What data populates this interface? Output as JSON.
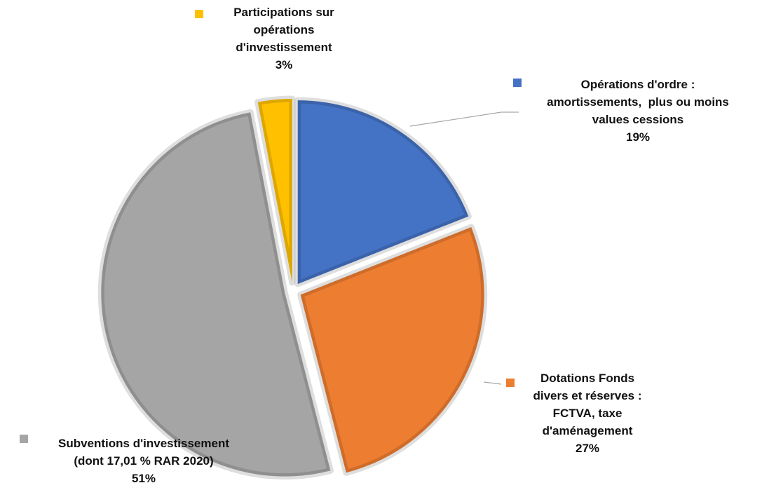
{
  "chart_data": {
    "type": "pie",
    "categories": [
      "Opérations d'ordre :\namortissements,  plus ou moins\nvalues cessions",
      "Dotations Fonds\ndivers et réserves :\nFCTVA, taxe\nd'aménagement",
      "Subventions d'investissement\n(dont 17,01 % RAR 2020)",
      "Participations sur\nopérations\nd'investissement"
    ],
    "values": [
      19,
      27,
      51,
      3
    ],
    "value_labels": [
      "19%",
      "27%",
      "51%",
      "3%"
    ],
    "colors": [
      "#4472c4",
      "#ed7d31",
      "#a5a5a5",
      "#ffc000"
    ]
  }
}
